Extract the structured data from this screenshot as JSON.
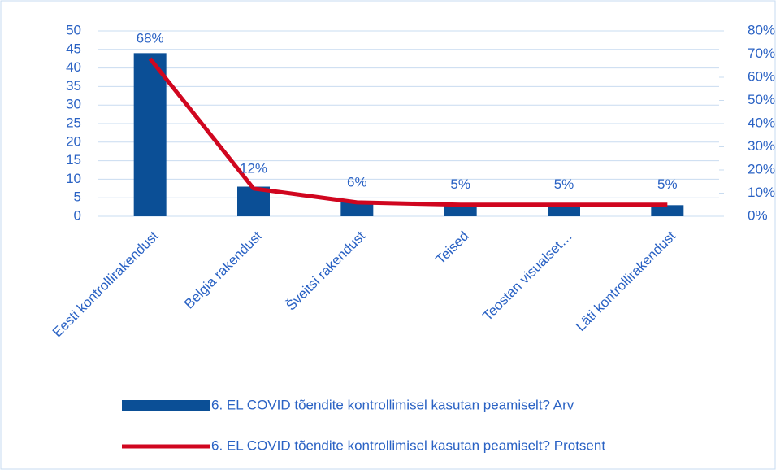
{
  "chart_data": {
    "type": "bar_line",
    "categories": [
      "Eesti kontrollirakendust",
      "Belgia rakendust",
      "Šveitsi rakendust",
      "Teised",
      "Teostan visualset…",
      "Läti kontrollirakendust"
    ],
    "series": [
      {
        "name": "6. EL COVID tõendite kontrollimisel kasutan peamiselt? Arv",
        "type": "bar",
        "color": "#0b4f96",
        "values": [
          44,
          8,
          4,
          3,
          3,
          3
        ]
      },
      {
        "name": "6. EL COVID tõendite kontrollimisel kasutan peamiselt? Protsent",
        "type": "line",
        "axis": "y2",
        "color": "#d0061f",
        "values": [
          68,
          12,
          6,
          5,
          5,
          5
        ],
        "value_labels": [
          "68%",
          "12%",
          "6%",
          "5%",
          "5%",
          "5%"
        ]
      }
    ],
    "ylim": [
      0,
      50
    ],
    "yticks": [
      0,
      5,
      10,
      15,
      20,
      25,
      30,
      35,
      40,
      45,
      50
    ],
    "y2lim": [
      0,
      80
    ],
    "y2ticks": [
      {
        "value": 0,
        "label": "0%"
      },
      {
        "value": 10,
        "label": "10%"
      },
      {
        "value": 20,
        "label": "20%"
      },
      {
        "value": 30,
        "label": "30%"
      },
      {
        "value": 40,
        "label": "40%"
      },
      {
        "value": 50,
        "label": "50%"
      },
      {
        "value": 60,
        "label": "60%"
      },
      {
        "value": 70,
        "label": "70%"
      },
      {
        "value": 80,
        "label": "80%"
      }
    ],
    "grid": true,
    "legend": "bottom"
  }
}
